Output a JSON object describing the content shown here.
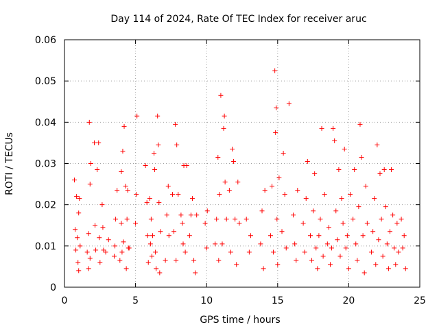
{
  "chart_data": {
    "type": "scatter",
    "title": "Day 114 of 2024, Rate Of TEC Index for receiver aruc",
    "xlabel": "GPS time / hours",
    "ylabel": "ROTI / TECUs",
    "xlim": [
      0,
      25
    ],
    "ylim": [
      0,
      0.06
    ],
    "grid": true,
    "marker": "+",
    "color": "#ff0000",
    "xticks": [
      0,
      5,
      10,
      15,
      20,
      25
    ],
    "xtick_labels": [
      "0",
      "5",
      "10",
      "15",
      "20",
      "25"
    ],
    "yticks": [
      0,
      0.01,
      0.02,
      0.03,
      0.04,
      0.05,
      0.06
    ],
    "ytick_labels": [
      "0",
      "0.01",
      "0.02",
      "0.03",
      "0.04",
      "0.05",
      "0.06"
    ],
    "series": [
      {
        "name": "ROTI",
        "points": [
          [
            0.7,
            0.026
          ],
          [
            0.75,
            0.014
          ],
          [
            0.8,
            0.009
          ],
          [
            0.85,
            0.022
          ],
          [
            0.9,
            0.012
          ],
          [
            0.95,
            0.006
          ],
          [
            1.0,
            0.018
          ],
          [
            1.0,
            0.004
          ],
          [
            1.05,
            0.0215
          ],
          [
            1.1,
            0.01
          ],
          [
            1.6,
            0.0085
          ],
          [
            1.7,
            0.013
          ],
          [
            1.7,
            0.0045
          ],
          [
            1.75,
            0.04
          ],
          [
            1.8,
            0.025
          ],
          [
            1.8,
            0.007
          ],
          [
            1.85,
            0.03
          ],
          [
            2.1,
            0.035
          ],
          [
            2.15,
            0.015
          ],
          [
            2.2,
            0.009
          ],
          [
            2.3,
            0.0285
          ],
          [
            2.4,
            0.035
          ],
          [
            2.45,
            0.012
          ],
          [
            2.5,
            0.006
          ],
          [
            2.65,
            0.02
          ],
          [
            2.7,
            0.0145
          ],
          [
            2.75,
            0.009
          ],
          [
            2.9,
            0.0085
          ],
          [
            3.1,
            0.0115
          ],
          [
            3.5,
            0.0075
          ],
          [
            3.55,
            0.01
          ],
          [
            3.6,
            0.0165
          ],
          [
            3.7,
            0.0235
          ],
          [
            3.9,
            0.0065
          ],
          [
            4.0,
            0.028
          ],
          [
            4.0,
            0.0155
          ],
          [
            4.05,
            0.0085
          ],
          [
            4.1,
            0.033
          ],
          [
            4.15,
            0.011
          ],
          [
            4.2,
            0.039
          ],
          [
            4.3,
            0.0245
          ],
          [
            4.35,
            0.0045
          ],
          [
            4.4,
            0.0165
          ],
          [
            4.45,
            0.0235
          ],
          [
            4.5,
            0.0095
          ],
          [
            4.55,
            0.0095
          ],
          [
            5.0,
            0.0155
          ],
          [
            5.05,
            0.0225
          ],
          [
            5.1,
            0.0415
          ],
          [
            5.7,
            0.0295
          ],
          [
            5.8,
            0.0205
          ],
          [
            5.85,
            0.0125
          ],
          [
            5.9,
            0.006
          ],
          [
            6.0,
            0.0215
          ],
          [
            6.05,
            0.0105
          ],
          [
            6.1,
            0.0165
          ],
          [
            6.15,
            0.0075
          ],
          [
            6.2,
            0.0125
          ],
          [
            6.3,
            0.0325
          ],
          [
            6.35,
            0.0285
          ],
          [
            6.4,
            0.0085
          ],
          [
            6.45,
            0.0045
          ],
          [
            6.55,
            0.0415
          ],
          [
            6.6,
            0.0345
          ],
          [
            6.65,
            0.0205
          ],
          [
            6.7,
            0.0035
          ],
          [
            6.75,
            0.0135
          ],
          [
            7.1,
            0.0065
          ],
          [
            7.2,
            0.0175
          ],
          [
            7.3,
            0.0245
          ],
          [
            7.35,
            0.0125
          ],
          [
            7.6,
            0.0225
          ],
          [
            7.7,
            0.0135
          ],
          [
            7.8,
            0.0395
          ],
          [
            7.85,
            0.0065
          ],
          [
            7.9,
            0.0345
          ],
          [
            8.0,
            0.0225
          ],
          [
            8.2,
            0.0175
          ],
          [
            8.3,
            0.0155
          ],
          [
            8.35,
            0.0105
          ],
          [
            8.4,
            0.0295
          ],
          [
            8.5,
            0.0085
          ],
          [
            8.6,
            0.0295
          ],
          [
            8.8,
            0.0125
          ],
          [
            8.9,
            0.0175
          ],
          [
            9.0,
            0.0215
          ],
          [
            9.1,
            0.0065
          ],
          [
            9.2,
            0.0035
          ],
          [
            9.3,
            0.0175
          ],
          [
            9.9,
            0.0155
          ],
          [
            10.0,
            0.0095
          ],
          [
            10.05,
            0.0185
          ],
          [
            10.6,
            0.0105
          ],
          [
            10.7,
            0.0165
          ],
          [
            10.8,
            0.0315
          ],
          [
            10.85,
            0.0065
          ],
          [
            10.9,
            0.0225
          ],
          [
            11.0,
            0.0465
          ],
          [
            11.1,
            0.0105
          ],
          [
            11.2,
            0.0385
          ],
          [
            11.25,
            0.0415
          ],
          [
            11.3,
            0.0255
          ],
          [
            11.4,
            0.0165
          ],
          [
            11.6,
            0.0235
          ],
          [
            11.7,
            0.0085
          ],
          [
            11.8,
            0.0335
          ],
          [
            11.9,
            0.0305
          ],
          [
            12.0,
            0.0165
          ],
          [
            12.1,
            0.0055
          ],
          [
            12.2,
            0.0255
          ],
          [
            12.3,
            0.0155
          ],
          [
            12.8,
            0.0165
          ],
          [
            13.0,
            0.0085
          ],
          [
            13.1,
            0.0125
          ],
          [
            13.8,
            0.0105
          ],
          [
            13.9,
            0.0185
          ],
          [
            14.0,
            0.0045
          ],
          [
            14.1,
            0.0235
          ],
          [
            14.5,
            0.0125
          ],
          [
            14.6,
            0.0245
          ],
          [
            14.7,
            0.0085
          ],
          [
            14.8,
            0.0525
          ],
          [
            14.85,
            0.0375
          ],
          [
            14.9,
            0.0435
          ],
          [
            14.95,
            0.0165
          ],
          [
            15.0,
            0.0055
          ],
          [
            15.1,
            0.0265
          ],
          [
            15.3,
            0.0135
          ],
          [
            15.4,
            0.0325
          ],
          [
            15.5,
            0.0225
          ],
          [
            15.6,
            0.0095
          ],
          [
            15.8,
            0.0445
          ],
          [
            16.1,
            0.0175
          ],
          [
            16.2,
            0.0105
          ],
          [
            16.3,
            0.0065
          ],
          [
            16.4,
            0.0235
          ],
          [
            16.8,
            0.0155
          ],
          [
            16.9,
            0.0085
          ],
          [
            17.0,
            0.0215
          ],
          [
            17.1,
            0.0305
          ],
          [
            17.3,
            0.0125
          ],
          [
            17.4,
            0.0065
          ],
          [
            17.5,
            0.0185
          ],
          [
            17.6,
            0.0275
          ],
          [
            17.7,
            0.0095
          ],
          [
            17.8,
            0.0045
          ],
          [
            17.9,
            0.0125
          ],
          [
            18.0,
            0.0165
          ],
          [
            18.1,
            0.0385
          ],
          [
            18.2,
            0.0075
          ],
          [
            18.3,
            0.0225
          ],
          [
            18.5,
            0.0105
          ],
          [
            18.6,
            0.0145
          ],
          [
            18.7,
            0.0055
          ],
          [
            18.8,
            0.0095
          ],
          [
            18.9,
            0.0385
          ],
          [
            19.0,
            0.0355
          ],
          [
            19.1,
            0.0185
          ],
          [
            19.2,
            0.0115
          ],
          [
            19.3,
            0.0285
          ],
          [
            19.4,
            0.0075
          ],
          [
            19.5,
            0.0215
          ],
          [
            19.6,
            0.0155
          ],
          [
            19.7,
            0.0335
          ],
          [
            19.8,
            0.0095
          ],
          [
            19.9,
            0.0125
          ],
          [
            20.0,
            0.0045
          ],
          [
            20.1,
            0.0225
          ],
          [
            20.3,
            0.0165
          ],
          [
            20.4,
            0.0285
          ],
          [
            20.5,
            0.0105
          ],
          [
            20.6,
            0.0065
          ],
          [
            20.7,
            0.0195
          ],
          [
            20.8,
            0.0395
          ],
          [
            20.9,
            0.0315
          ],
          [
            21.0,
            0.0125
          ],
          [
            21.1,
            0.0035
          ],
          [
            21.2,
            0.0245
          ],
          [
            21.3,
            0.0155
          ],
          [
            21.6,
            0.0085
          ],
          [
            21.7,
            0.0135
          ],
          [
            21.8,
            0.0215
          ],
          [
            21.9,
            0.0055
          ],
          [
            22.0,
            0.0345
          ],
          [
            22.1,
            0.0115
          ],
          [
            22.2,
            0.0275
          ],
          [
            22.3,
            0.0165
          ],
          [
            22.4,
            0.0075
          ],
          [
            22.5,
            0.0285
          ],
          [
            22.6,
            0.0195
          ],
          [
            22.7,
            0.0105
          ],
          [
            22.8,
            0.0045
          ],
          [
            22.9,
            0.0135
          ],
          [
            23.0,
            0.0285
          ],
          [
            23.1,
            0.0175
          ],
          [
            23.2,
            0.0095
          ],
          [
            23.3,
            0.0055
          ],
          [
            23.4,
            0.0155
          ],
          [
            23.5,
            0.0085
          ],
          [
            23.7,
            0.0165
          ],
          [
            23.8,
            0.0095
          ],
          [
            23.9,
            0.0125
          ],
          [
            24.0,
            0.0045
          ]
        ]
      }
    ]
  }
}
